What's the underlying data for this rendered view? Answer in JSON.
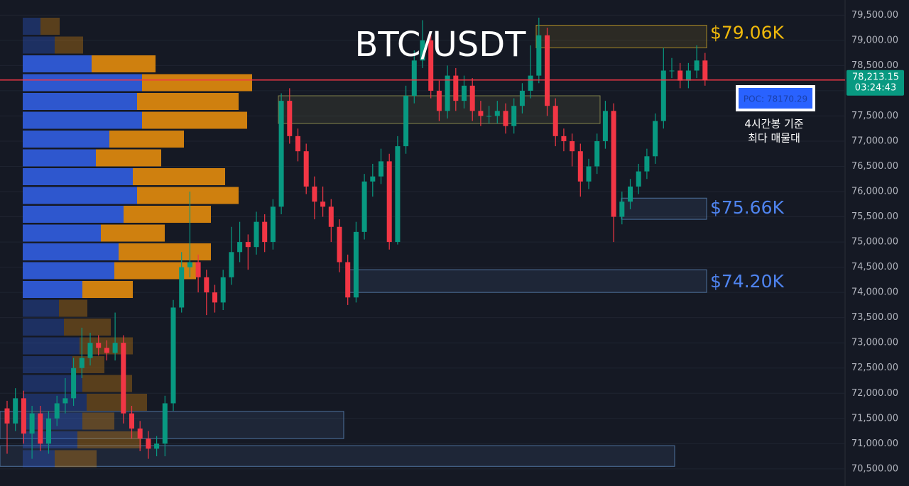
{
  "chart_data": {
    "type": "candlestick",
    "title": "BTC/USDT",
    "ylim": [
      70160,
      79800
    ],
    "yticks": [
      {
        "value": 70500,
        "label": "70,500.00"
      },
      {
        "value": 71000,
        "label": "71,000.00"
      },
      {
        "value": 71500,
        "label": "71,500.00"
      },
      {
        "value": 72000,
        "label": "72,000.00"
      },
      {
        "value": 72500,
        "label": "72,500.00"
      },
      {
        "value": 73000,
        "label": "73,000.00"
      },
      {
        "value": 73500,
        "label": "73,500.00"
      },
      {
        "value": 74000,
        "label": "74,000.00"
      },
      {
        "value": 74500,
        "label": "74,500.00"
      },
      {
        "value": 75000,
        "label": "75,000.00"
      },
      {
        "value": 75500,
        "label": "75,500.00"
      },
      {
        "value": 76000,
        "label": "76,000.00"
      },
      {
        "value": 76500,
        "label": "76,500.00"
      },
      {
        "value": 77000,
        "label": "77,000.00"
      },
      {
        "value": 77500,
        "label": "77,500.00"
      },
      {
        "value": 78000,
        "label": "78,000.00"
      },
      {
        "value": 78500,
        "label": "78,500.00"
      },
      {
        "value": 79000,
        "label": "79,000.00"
      },
      {
        "value": 79500,
        "label": "79,500.00"
      }
    ],
    "grid": true,
    "up_color": "#089981",
    "down_color": "#f23645",
    "open": [
      71700,
      71400,
      71900,
      71200,
      71600,
      71000,
      71500,
      71800,
      71900,
      72500,
      72700,
      73000,
      72900,
      72800,
      73000,
      71600,
      71300,
      71100,
      70900,
      71000,
      71800,
      73700,
      74500,
      74600,
      74300,
      74000,
      73800,
      74300,
      74800,
      75000,
      74900,
      75400,
      75000,
      75700,
      77800,
      77100,
      76800,
      76100,
      75800,
      75700,
      75300,
      74600,
      73900,
      75200,
      76200,
      76300,
      76600,
      75000,
      76900,
      77900,
      78600,
      79000,
      78000,
      77600,
      78300,
      77800,
      78100,
      77600,
      77500,
      77500,
      77600,
      77300,
      77700,
      78000,
      78300,
      79100,
      77700,
      77100,
      77000,
      76800,
      76200,
      76500,
      77000,
      77600,
      75500,
      75800,
      76100,
      76400,
      76700,
      77400,
      78400,
      78400,
      78200,
      78400,
      78600
    ],
    "high": [
      71850,
      72100,
      72050,
      71750,
      71750,
      71650,
      71950,
      72300,
      72700,
      73300,
      73200,
      73150,
      73050,
      73600,
      73150,
      71750,
      71450,
      71250,
      71150,
      71950,
      73850,
      74800,
      76000,
      74750,
      74450,
      74150,
      74450,
      75300,
      75400,
      75150,
      75600,
      75550,
      75850,
      77950,
      78050,
      77250,
      76950,
      76300,
      76100,
      75850,
      75450,
      74750,
      75400,
      76350,
      76550,
      76850,
      76750,
      77100,
      78100,
      78800,
      79400,
      79150,
      78200,
      78500,
      78450,
      78300,
      78250,
      77800,
      77700,
      77800,
      77750,
      77850,
      78150,
      78900,
      79450,
      79250,
      77850,
      77250,
      77150,
      76950,
      76650,
      77150,
      77800,
      77750,
      76000,
      76250,
      76550,
      76850,
      77550,
      78850,
      78650,
      78550,
      78550,
      78900,
      78750
    ],
    "low": [
      70800,
      71250,
      71000,
      70700,
      70850,
      70800,
      71350,
      71600,
      71750,
      72300,
      72550,
      72750,
      72650,
      72650,
      71400,
      71100,
      70850,
      70700,
      70750,
      70750,
      71650,
      73600,
      74300,
      74000,
      73550,
      73600,
      73650,
      74150,
      74600,
      74450,
      74750,
      74800,
      74850,
      75550,
      76950,
      76600,
      75950,
      75450,
      75500,
      75000,
      74400,
      73750,
      73800,
      75050,
      75900,
      76150,
      74850,
      74950,
      76750,
      77750,
      78450,
      77850,
      77400,
      77450,
      77600,
      77650,
      77400,
      77300,
      77350,
      77350,
      77150,
      77150,
      77550,
      77850,
      78150,
      77500,
      76900,
      76800,
      76500,
      75900,
      76050,
      76350,
      76850,
      75000,
      75350,
      75650,
      75950,
      76250,
      76550,
      77250,
      78250,
      78050,
      78050,
      78250,
      78100
    ],
    "close": [
      71400,
      71900,
      71200,
      71600,
      71000,
      71500,
      71800,
      71900,
      72500,
      72700,
      73000,
      72900,
      72800,
      73000,
      71600,
      71300,
      71100,
      70900,
      71000,
      71800,
      73700,
      74500,
      74600,
      74300,
      74000,
      73800,
      74300,
      74800,
      75000,
      74900,
      75400,
      75000,
      75700,
      77800,
      77100,
      76800,
      76100,
      75800,
      75700,
      75300,
      74600,
      73900,
      75200,
      76200,
      76300,
      76600,
      75000,
      76900,
      77900,
      78600,
      79000,
      78000,
      77600,
      78300,
      77800,
      78100,
      77600,
      77500,
      77500,
      77600,
      77300,
      77700,
      78000,
      78300,
      79100,
      77700,
      77100,
      77000,
      76800,
      76200,
      76500,
      77000,
      77600,
      75500,
      75800,
      76100,
      76400,
      76700,
      77400,
      78400,
      78400,
      78200,
      78400,
      78600,
      78213.15
    ],
    "volume_profile": {
      "buy_color": "#2f5bd8",
      "sell_color": "#d9860f",
      "buy": [
        25,
        45,
        97,
        168,
        161,
        168,
        122,
        103,
        155,
        161,
        142,
        110,
        135,
        129,
        84,
        51,
        58,
        80,
        70,
        84,
        90,
        84,
        77,
        45
      ],
      "sell": [
        27,
        40,
        90,
        155,
        143,
        148,
        105,
        92,
        130,
        143,
        123,
        90,
        130,
        115,
        71,
        40,
        66,
        75,
        45,
        70,
        85,
        45,
        90,
        59
      ]
    },
    "zones": [
      {
        "high": 79300,
        "low": 78850,
        "color": "#c9a227"
      },
      {
        "high": 77900,
        "low": 77350,
        "color": "#9a9a55"
      },
      {
        "high": 75870,
        "low": 75450,
        "color": "#5b86b8"
      },
      {
        "high": 74450,
        "low": 74000,
        "color": "#5b86b8"
      },
      {
        "high": 71640,
        "low": 71100,
        "color": "#5b86b8"
      },
      {
        "high": 70960,
        "low": 70550,
        "color": "#5b86b8"
      }
    ],
    "level_labels": [
      {
        "text": "$79.06K",
        "value": 79060,
        "color": "#f0b90b"
      },
      {
        "text": "$75.66K",
        "value": 75660,
        "color": "#4f84f0"
      },
      {
        "text": "$74.20K",
        "value": 74200,
        "color": "#4f84f0"
      }
    ],
    "current_price_label": "78,213.15",
    "countdown": "03:24:43",
    "poc_label": "POC: 78170.29",
    "poc_note": [
      "4시간봉 기준",
      "최다 매물대"
    ]
  }
}
